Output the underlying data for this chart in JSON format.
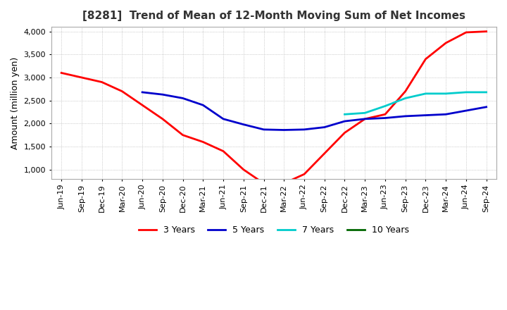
{
  "title": "[8281]  Trend of Mean of 12-Month Moving Sum of Net Incomes",
  "ylabel": "Amount (million yen)",
  "ylim": [
    800,
    4100
  ],
  "yticks": [
    1000,
    1500,
    2000,
    2500,
    3000,
    3500,
    4000
  ],
  "line_colors": {
    "3 Years": "#ff0000",
    "5 Years": "#0000cc",
    "7 Years": "#00cccc",
    "10 Years": "#006600"
  },
  "x_labels": [
    "Jun-19",
    "Sep-19",
    "Dec-19",
    "Mar-20",
    "Jun-20",
    "Sep-20",
    "Dec-20",
    "Mar-21",
    "Jun-21",
    "Sep-21",
    "Dec-21",
    "Mar-22",
    "Jun-22",
    "Sep-22",
    "Dec-22",
    "Mar-23",
    "Jun-23",
    "Sep-23",
    "Dec-23",
    "Mar-24",
    "Jun-24",
    "Sep-24"
  ],
  "series": {
    "3 Years": [
      3100,
      3000,
      2900,
      2700,
      2400,
      2100,
      1750,
      1600,
      1400,
      1000,
      700,
      700,
      900,
      1350,
      1800,
      2100,
      2200,
      2700,
      3400,
      3750,
      3980,
      4000
    ],
    "5 Years": [
      null,
      null,
      null,
      null,
      2680,
      2630,
      2550,
      2400,
      2100,
      1980,
      1870,
      1860,
      1870,
      1920,
      2050,
      2100,
      2120,
      2160,
      2180,
      2200,
      2280,
      2360
    ],
    "7 Years": [
      null,
      null,
      null,
      null,
      null,
      null,
      null,
      null,
      null,
      null,
      null,
      null,
      null,
      null,
      2200,
      2230,
      2380,
      2550,
      2650,
      2650,
      2680,
      2680
    ],
    "10 Years": [
      null,
      null,
      null,
      null,
      null,
      null,
      null,
      null,
      null,
      null,
      null,
      null,
      null,
      null,
      null,
      null,
      null,
      null,
      null,
      null,
      null,
      null
    ]
  }
}
